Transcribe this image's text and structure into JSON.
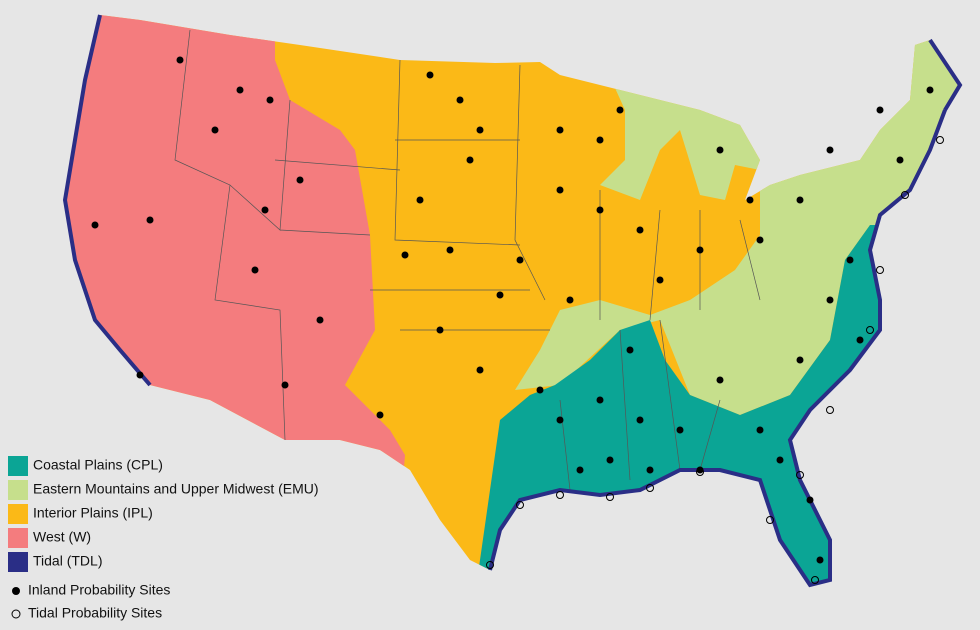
{
  "legend": {
    "regions": [
      {
        "label": "Coastal Plains (CPL)",
        "color": "#0ba595"
      },
      {
        "label": "Eastern Mountains and Upper Midwest (EMU)",
        "color": "#c6df8c"
      },
      {
        "label": "Interior Plains (IPL)",
        "color": "#fbb917"
      },
      {
        "label": "West (W)",
        "color": "#f47c7e"
      },
      {
        "label": "Tidal (TDL)",
        "color": "#2a2e86"
      }
    ],
    "sites": [
      {
        "label": "Inland Probability Sites"
      },
      {
        "label": "Tidal Probability Sites"
      }
    ]
  }
}
